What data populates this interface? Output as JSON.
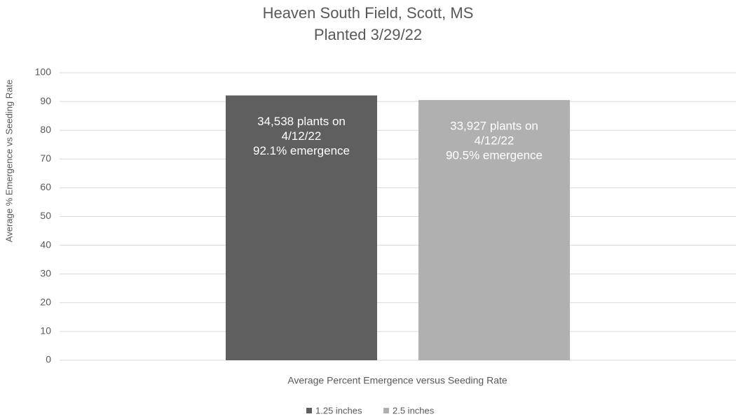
{
  "chart_data": {
    "type": "bar",
    "title": "Heaven South Field, Scott, MS",
    "subtitle": "Planted 3/29/22",
    "x_label": "Average Percent Emergence versus Seeding Rate",
    "y_label": "Average % Emergence vs Seeding Rate",
    "categories": [
      null
    ],
    "series": [
      {
        "name": "1.25 inches",
        "color": "#5f5f5f",
        "values": [
          92.1
        ],
        "value_labels": [
          [
            "34,538 plants on",
            "4/12/22",
            "92.1% emergence"
          ]
        ]
      },
      {
        "name": "2.5 inches",
        "color": "#b0b0b0",
        "values": [
          90.5
        ],
        "value_labels": [
          [
            "33,927 plants on",
            "4/12/22",
            "90.5% emergence"
          ]
        ]
      }
    ],
    "ylim": [
      0,
      100
    ],
    "yticks": [
      0,
      10,
      20,
      30,
      40,
      50,
      60,
      70,
      80,
      90,
      100
    ],
    "grid": true,
    "legend": "bottom"
  }
}
